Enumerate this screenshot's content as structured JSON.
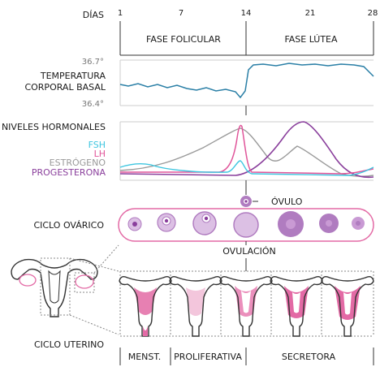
{
  "days": {
    "label": "DÍAS",
    "ticks": [
      "1",
      "7",
      "14",
      "21",
      "28"
    ]
  },
  "phases": {
    "follicular": "FASE FOLICULAR",
    "luteal": "FASE LÚTEA"
  },
  "temperature": {
    "label_line1": "TEMPERATURA",
    "label_line2": "CORPORAL BASAL",
    "max_label": "36.7°",
    "min_label": "36.4°",
    "color": "#2a7fa6"
  },
  "hormones": {
    "title": "NIVELES HORMONALES",
    "legend": [
      {
        "name": "FSH",
        "color": "#3ec6e0"
      },
      {
        "name": "LH",
        "color": "#e0559a"
      },
      {
        "name": "ESTRÓGENO",
        "color": "#9a9a9a"
      },
      {
        "name": "PROGESTERONA",
        "color": "#8a3f9c"
      }
    ]
  },
  "ovarian": {
    "label": "CICLO OVÁRICO",
    "ovum": "ÓVULO",
    "ovulation": "OVULACIÓN"
  },
  "uterine": {
    "label": "CICLO UTERINO",
    "phases": [
      "MENST.",
      "PROLIFERATIVA",
      "SECRETORA"
    ]
  },
  "colors": {
    "pink": "#e36aa5",
    "purple": "#b07cc0",
    "light_purple": "#dcc0e4",
    "line": "#333333"
  }
}
